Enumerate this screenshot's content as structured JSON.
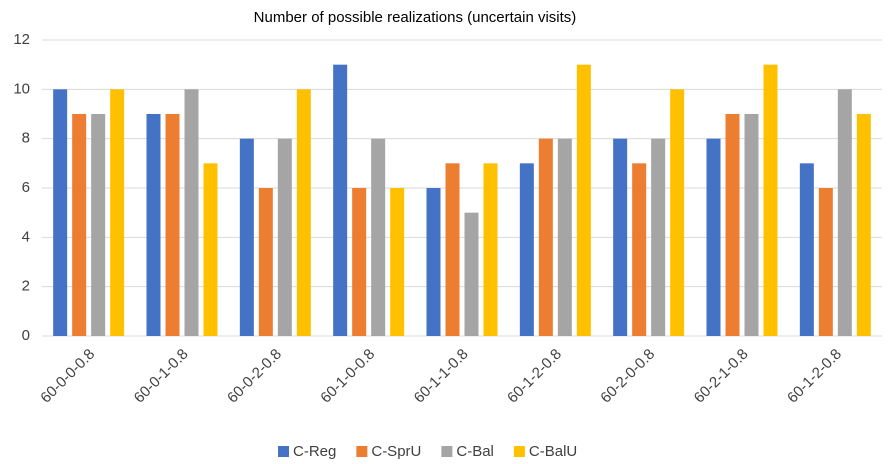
{
  "chart_data": {
    "type": "bar",
    "title": "Number of possible realizations (uncertain visits)",
    "categories": [
      "60-0-0-0.8",
      "60-0-1-0.8",
      "60-0-2-0.8",
      "60-1-0-0.8",
      "60-1-1-0.8",
      "60-1-2-0.8",
      "60-2-0-0.8",
      "60-2-1-0.8",
      "60-1-2-0.8"
    ],
    "series": [
      {
        "name": "C-Reg",
        "color": "#4472c4",
        "values": [
          10,
          9,
          8,
          11,
          6,
          7,
          8,
          8,
          7
        ]
      },
      {
        "name": "C-SprU",
        "color": "#ed7d31",
        "values": [
          9,
          9,
          6,
          6,
          7,
          8,
          7,
          9,
          6
        ]
      },
      {
        "name": "C-Bal",
        "color": "#a5a5a5",
        "values": [
          9,
          10,
          8,
          8,
          5,
          8,
          8,
          9,
          10
        ]
      },
      {
        "name": "C-BalU",
        "color": "#ffc000",
        "values": [
          10,
          7,
          10,
          6,
          7,
          11,
          10,
          11,
          9
        ]
      }
    ],
    "ylim": [
      0,
      12
    ],
    "yticks": [
      0,
      2,
      4,
      6,
      8,
      10,
      12
    ],
    "grid": true,
    "legend": "bottom"
  }
}
